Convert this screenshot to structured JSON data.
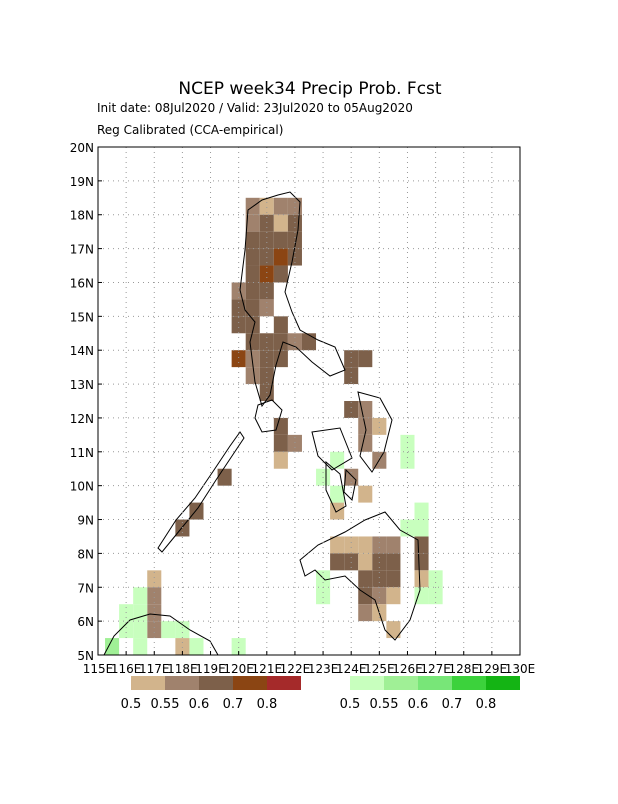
{
  "header": {
    "title": "NCEP week34 Precip Prob. Fcst",
    "line1": "Init date: 08Jul2020 / Valid: 23Jul2020 to 05Aug2020",
    "line2": "Reg Calibrated (CCA-empirical)"
  },
  "map": {
    "lon_range": [
      115,
      130
    ],
    "lat_range": [
      5,
      20
    ],
    "cell_size": 0.5,
    "lon_ticks": [
      {
        "value": 115,
        "label": "115E"
      },
      {
        "value": 116,
        "label": "116E"
      },
      {
        "value": 117,
        "label": "117E"
      },
      {
        "value": 118,
        "label": "118E"
      },
      {
        "value": 119,
        "label": "119E"
      },
      {
        "value": 120,
        "label": "120E"
      },
      {
        "value": 121,
        "label": "121E"
      },
      {
        "value": 122,
        "label": "122E"
      },
      {
        "value": 123,
        "label": "123E"
      },
      {
        "value": 124,
        "label": "124E"
      },
      {
        "value": 125,
        "label": "125E"
      },
      {
        "value": 126,
        "label": "126E"
      },
      {
        "value": 127,
        "label": "127E"
      },
      {
        "value": 128,
        "label": "128E"
      },
      {
        "value": 129,
        "label": "129E"
      },
      {
        "value": 130,
        "label": "130E"
      }
    ],
    "lat_ticks": [
      {
        "value": 5,
        "label": "5N"
      },
      {
        "value": 6,
        "label": "6N"
      },
      {
        "value": 7,
        "label": "7N"
      },
      {
        "value": 8,
        "label": "8N"
      },
      {
        "value": 9,
        "label": "9N"
      },
      {
        "value": 10,
        "label": "10N"
      },
      {
        "value": 11,
        "label": "11N"
      },
      {
        "value": 12,
        "label": "12N"
      },
      {
        "value": 13,
        "label": "13N"
      },
      {
        "value": 14,
        "label": "14N"
      },
      {
        "value": 15,
        "label": "15N"
      },
      {
        "value": 16,
        "label": "16N"
      },
      {
        "value": 17,
        "label": "17N"
      },
      {
        "value": 18,
        "label": "18N"
      },
      {
        "value": 19,
        "label": "19N"
      },
      {
        "value": 20,
        "label": "20N"
      }
    ],
    "below": {
      "levels": [
        0.5,
        0.55,
        0.6,
        0.7,
        0.8
      ],
      "colors": [
        "#d2b48c",
        "#a0826d",
        "#7d604a",
        "#8b4513",
        "#a52a2a"
      ],
      "cells": [
        [
          120.25,
          18,
          0.55
        ],
        [
          120.75,
          18,
          0.5
        ],
        [
          121.25,
          18,
          0.55
        ],
        [
          121.75,
          18,
          0.55
        ],
        [
          120.25,
          17.5,
          0.55
        ],
        [
          120.75,
          17.5,
          0.6
        ],
        [
          121.25,
          17.5,
          0.5
        ],
        [
          121.75,
          17.5,
          0.6
        ],
        [
          120.25,
          17,
          0.6
        ],
        [
          120.75,
          17,
          0.6
        ],
        [
          121.25,
          17,
          0.6
        ],
        [
          121.75,
          17,
          0.6
        ],
        [
          120.25,
          16.5,
          0.6
        ],
        [
          120.75,
          16.5,
          0.6
        ],
        [
          121.25,
          16.5,
          0.7
        ],
        [
          121.75,
          16.5,
          0.6
        ],
        [
          120.25,
          16,
          0.6
        ],
        [
          120.75,
          16,
          0.7
        ],
        [
          121.25,
          16,
          0.6
        ],
        [
          119.75,
          15.5,
          0.55
        ],
        [
          120.25,
          15.5,
          0.6
        ],
        [
          120.75,
          15.5,
          0.6
        ],
        [
          119.75,
          15,
          0.6
        ],
        [
          120.25,
          15,
          0.6
        ],
        [
          120.75,
          15,
          0.55
        ],
        [
          119.75,
          14.5,
          0.6
        ],
        [
          120.25,
          14.5,
          0.6
        ],
        [
          121.25,
          14.5,
          0.6
        ],
        [
          120.25,
          14,
          0.6
        ],
        [
          120.75,
          14,
          0.6
        ],
        [
          121.25,
          14,
          0.6
        ],
        [
          121.75,
          14,
          0.55
        ],
        [
          122.25,
          14,
          0.6
        ],
        [
          119.75,
          13.5,
          0.7
        ],
        [
          120.25,
          13.5,
          0.55
        ],
        [
          120.75,
          13.5,
          0.6
        ],
        [
          121.25,
          13.5,
          0.6
        ],
        [
          123.75,
          13.5,
          0.6
        ],
        [
          124.25,
          13.5,
          0.6
        ],
        [
          120.25,
          13,
          0.55
        ],
        [
          120.75,
          13,
          0.6
        ],
        [
          123.75,
          13,
          0.6
        ],
        [
          120.75,
          12.5,
          0.6
        ],
        [
          123.75,
          12,
          0.6
        ],
        [
          124.25,
          12,
          0.55
        ],
        [
          121.25,
          11.5,
          0.6
        ],
        [
          124.25,
          11.5,
          0.55
        ],
        [
          124.75,
          11.5,
          0.5
        ],
        [
          121.25,
          11,
          0.6
        ],
        [
          121.75,
          11,
          0.55
        ],
        [
          124.25,
          11,
          0.55
        ],
        [
          121.25,
          10.5,
          0.5
        ],
        [
          124.75,
          10.5,
          0.55
        ],
        [
          119.25,
          10,
          0.6
        ],
        [
          123.75,
          10,
          0.55
        ],
        [
          124.25,
          9.5,
          0.5
        ],
        [
          118.25,
          9,
          0.6
        ],
        [
          123.25,
          9,
          0.5
        ],
        [
          117.75,
          8.5,
          0.6
        ],
        [
          123.25,
          8,
          0.5
        ],
        [
          123.75,
          8,
          0.5
        ],
        [
          124.25,
          8,
          0.5
        ],
        [
          124.75,
          8,
          0.55
        ],
        [
          125.25,
          8,
          0.55
        ],
        [
          126.25,
          8,
          0.6
        ],
        [
          123.25,
          7.5,
          0.6
        ],
        [
          123.75,
          7.5,
          0.6
        ],
        [
          124.25,
          7.5,
          0.5
        ],
        [
          124.75,
          7.5,
          0.6
        ],
        [
          125.25,
          7.5,
          0.6
        ],
        [
          126.25,
          7.5,
          0.6
        ],
        [
          124.25,
          7,
          0.6
        ],
        [
          124.75,
          7,
          0.6
        ],
        [
          125.25,
          7,
          0.6
        ],
        [
          126.25,
          7,
          0.5
        ],
        [
          124.25,
          6.5,
          0.6
        ],
        [
          124.75,
          6.5,
          0.55
        ],
        [
          125.25,
          6.5,
          0.5
        ],
        [
          124.25,
          6,
          0.55
        ],
        [
          124.75,
          6,
          0.5
        ],
        [
          125.25,
          5.5,
          0.5
        ],
        [
          116.75,
          7,
          0.5
        ],
        [
          116.75,
          6.5,
          0.55
        ],
        [
          116.75,
          6,
          0.55
        ],
        [
          116.75,
          5.5,
          0.55
        ],
        [
          117.75,
          5,
          0.5
        ]
      ]
    },
    "above": {
      "levels": [
        0.5,
        0.55,
        0.6,
        0.7,
        0.8
      ],
      "colors": [
        "#c8ffbe",
        "#a0f096",
        "#78e678",
        "#3cd23c",
        "#14b414"
      ],
      "cells": [
        [
          116.25,
          6.5,
          0.5
        ],
        [
          115.75,
          6,
          0.5
        ],
        [
          116.25,
          6,
          0.5
        ],
        [
          115.75,
          5.5,
          0.5
        ],
        [
          116.25,
          5.5,
          0.5
        ],
        [
          117.25,
          5.5,
          0.5
        ],
        [
          117.75,
          5.5,
          0.5
        ],
        [
          115.25,
          5,
          0.55
        ],
        [
          116.25,
          5,
          0.5
        ],
        [
          118.25,
          5,
          0.5
        ],
        [
          119.75,
          5,
          0.5
        ],
        [
          123.25,
          10.5,
          0.5
        ],
        [
          122.75,
          10,
          0.5
        ],
        [
          123.25,
          9.5,
          0.5
        ],
        [
          125.75,
          11,
          0.5
        ],
        [
          125.75,
          10.5,
          0.5
        ],
        [
          126.25,
          9,
          0.5
        ],
        [
          125.75,
          8.5,
          0.5
        ],
        [
          126.25,
          8.5,
          0.5
        ],
        [
          122.75,
          7,
          0.5
        ],
        [
          122.75,
          6.5,
          0.5
        ],
        [
          126.25,
          6.5,
          0.5
        ],
        [
          126.75,
          6.5,
          0.5
        ],
        [
          126.75,
          7,
          0.5
        ]
      ]
    }
  }
}
